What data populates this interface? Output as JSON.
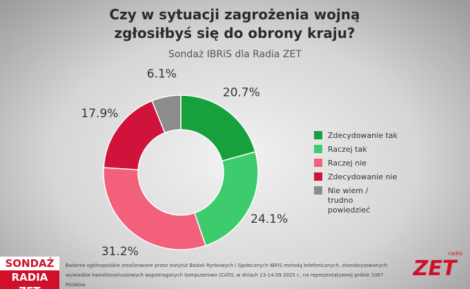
{
  "chart_data": {
    "type": "pie",
    "title": "Czy w sytuacji zagrożenia wojną zgłosiłbyś się do obrony kraju?",
    "subtitle": "Sondaż IBRiS dla Radia ZET",
    "categories": [
      "Zdecydowanie tak",
      "Raczej tak",
      "Raczej nie",
      "Zdecydowanie nie",
      "Nie wiem / trudno powiedzieć"
    ],
    "values": [
      20.7,
      24.1,
      31.2,
      17.9,
      6.1
    ],
    "value_labels": [
      "20.7%",
      "24.1%",
      "31.2%",
      "17.9%",
      "6.1%"
    ],
    "colors": [
      "#17a03c",
      "#3ecb6d",
      "#f2607a",
      "#d0133a",
      "#8c8c8c"
    ],
    "legend": "right"
  },
  "footer": {
    "logo_top": "SONDAŻ",
    "logo_bottom": "RADIA ZET",
    "note": "Badanie ogólnopolskie zrealizowane przez Instytut Badań Rynkowych i Społecznych IBRiS metodą telefonicznych, standaryzowanych wywiadów kwestionariuszowych wspomaganych komputerowo (CATI), w dniach 13-14.09.2025 r., na reprezentatywnej próbie 1067 Polaków.",
    "brand_small": "radio",
    "brand": "ZET"
  }
}
